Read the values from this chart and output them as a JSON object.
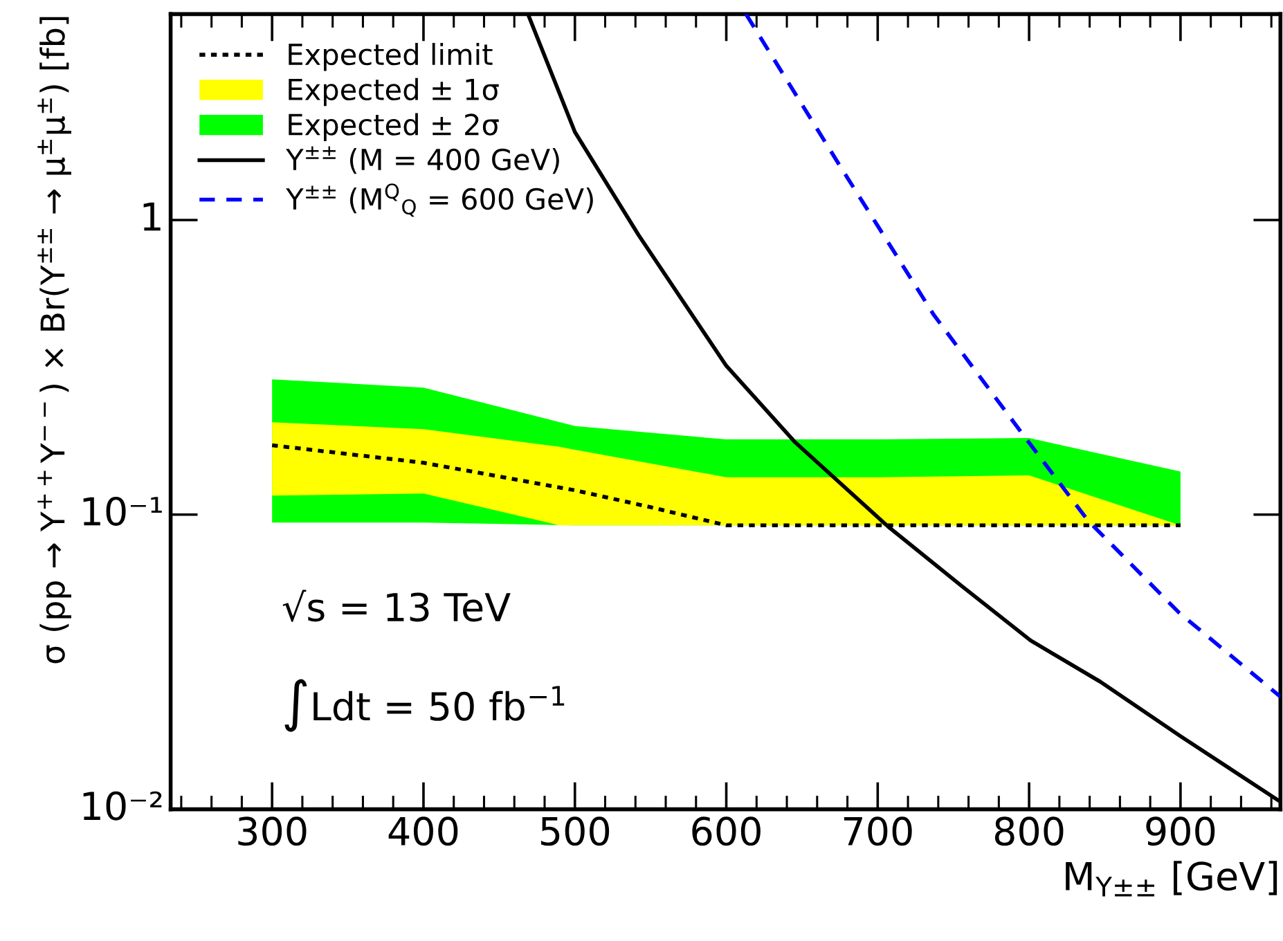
{
  "chart_data": {
    "type": "line",
    "xlabel": "M$_{Y±±}$ [GeV]",
    "ylabel": "σ (pp → Y$^{++}$Y$^{−−}$) × Br(Y$^{±±}$ → μ$^{±}$μ$^{±}$) [fb]",
    "log": "y",
    "xlim": [
      233,
      966
    ],
    "xticks": [
      300,
      400,
      500,
      600,
      700,
      800,
      900
    ],
    "ylim": [
      0.01,
      5
    ],
    "yticks": [
      {
        "value": 0.01,
        "label": "10⁻²"
      },
      {
        "value": 0.1,
        "label": "10⁻¹"
      },
      1
    ],
    "grid": false,
    "legend": "top left",
    "series": [
      {
        "name": "Expected limit",
        "color": "#000000",
        "line_style": "dotted",
        "x": [
          300,
          400,
          500,
          550,
          600,
          700,
          800,
          900
        ],
        "values": [
          0.172,
          0.15,
          0.121,
          0.106,
          0.092,
          0.092,
          0.092,
          0.092
        ]
      },
      {
        "name": "Expected ± 1σ",
        "color": "#ffff00",
        "x": [
          300,
          400,
          490,
          500,
          600,
          700,
          800,
          900
        ],
        "values": [
          null,
          null,
          null,
          null,
          null,
          null,
          null,
          null
        ],
        "lower": [
          0.116,
          0.118,
          0.092,
          0.092,
          0.092,
          0.092,
          0.092,
          0.092
        ],
        "upper": [
          0.206,
          0.195,
          0.17,
          0.166,
          0.134,
          0.134,
          0.136,
          0.092
        ]
      },
      {
        "name": "Expected ± 2σ",
        "color": "#00ff00",
        "x": [
          300,
          400,
          500,
          600,
          700,
          800,
          900
        ],
        "values": [
          null,
          null,
          null,
          null,
          null,
          null,
          null
        ],
        "lower": [
          0.094,
          0.094,
          0.092,
          0.092,
          0.092,
          0.092,
          0.092
        ],
        "upper": [
          0.288,
          0.27,
          0.2,
          0.18,
          0.18,
          0.182,
          0.14
        ]
      },
      {
        "name": "Y$^{±±}$ (M = 400 GeV)",
        "color": "#000000",
        "line_style": "solid",
        "x": [
          469,
          500,
          542,
          600,
          645,
          707,
          755,
          801,
          847,
          900,
          966
        ],
        "values": [
          5,
          1.99,
          0.89,
          0.32,
          0.177,
          0.091,
          0.0575,
          0.0374,
          0.0271,
          0.0177,
          0.0106
        ]
      },
      {
        "name": "Y$^{±±}$ (M$^{Q}$$_{Q}$ = 600 GeV)",
        "color": "#0000ff",
        "line_style": "dashed",
        "x": [
          613,
          676,
          737,
          798,
          839,
          899,
          966
        ],
        "values": [
          5,
          1.5,
          0.477,
          0.181,
          0.0953,
          0.0465,
          0.0241
        ]
      }
    ],
    "annotations": [
      "√s = 13 TeV",
      "∫Ldt = 50 fb$^{−1}$"
    ]
  }
}
